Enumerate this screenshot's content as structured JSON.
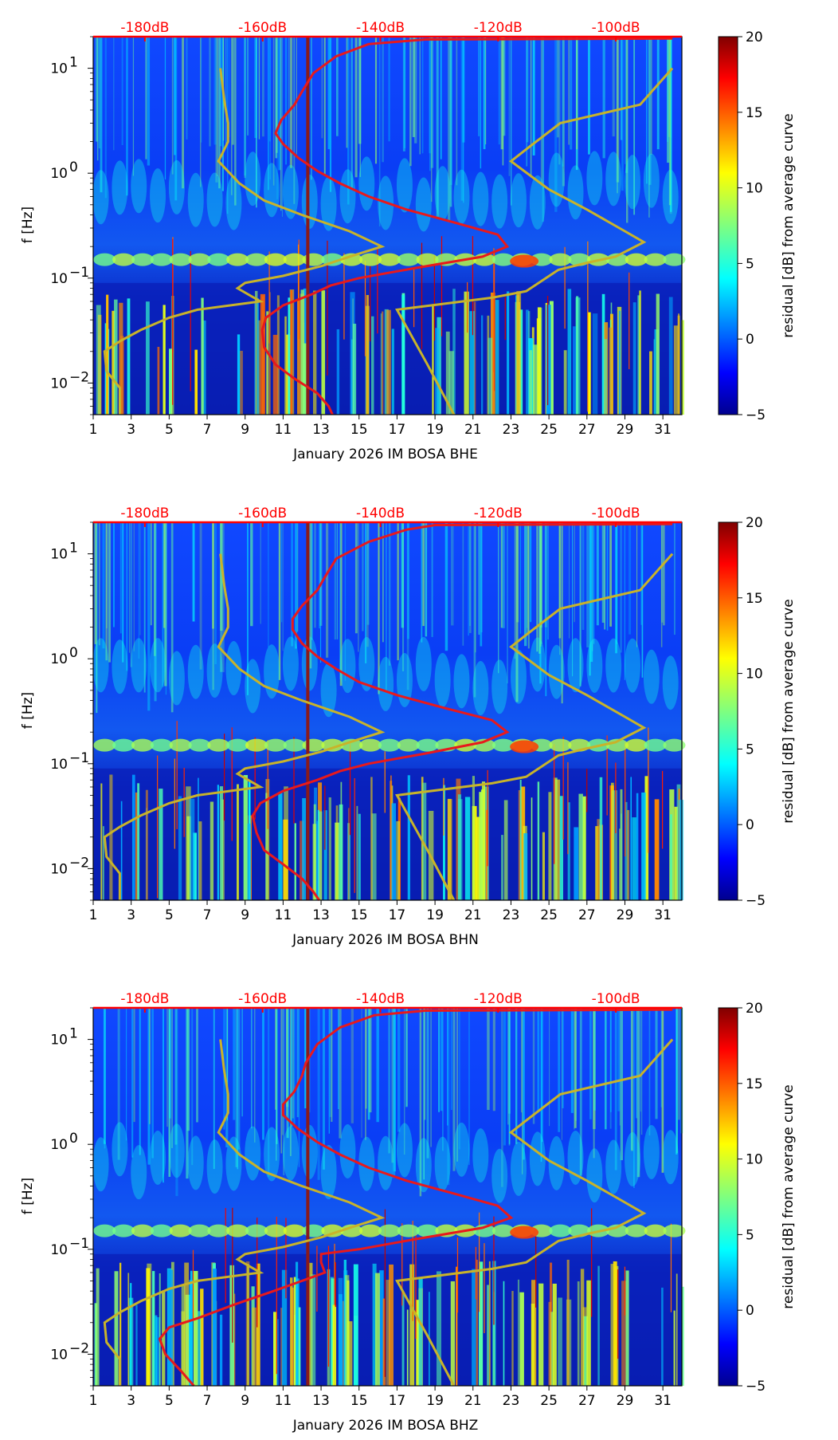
{
  "chart_data": [
    {
      "type": "heatmap",
      "xlabel": "January 2026 IM BOSA  BHE",
      "ylabel": "f [Hz]",
      "x_ticks": [
        "1",
        "3",
        "5",
        "7",
        "9",
        "11",
        "13",
        "15",
        "17",
        "19",
        "21",
        "23",
        "25",
        "27",
        "29",
        "31"
      ],
      "xlim": [
        1,
        32
      ],
      "ylim": [
        0.005,
        20
      ],
      "y_scale": "log",
      "y_ticks": [
        {
          "value": 10,
          "base": "10",
          "exp": "1"
        },
        {
          "value": 1,
          "base": "10",
          "exp": "0"
        },
        {
          "value": 0.1,
          "base": "10",
          "exp": "−1"
        },
        {
          "value": 0.01,
          "base": "10",
          "exp": "−2"
        }
      ],
      "top_axis_labels": [
        "-180dB",
        "-160dB",
        "-140dB",
        "-120dB",
        "-100dB"
      ],
      "top_axis_color": "#ff0000",
      "colorbar": {
        "label": "residual [dB] from average curve",
        "ticks": [
          "20",
          "15",
          "10",
          "5",
          "0",
          "−5"
        ],
        "range": [
          -5,
          20
        ],
        "colormap": "jet"
      },
      "marker_day": 12.3,
      "red_curve": {
        "color": "#e8191c",
        "points": [
          [
            13.6,
            0.005
          ],
          [
            13.4,
            0.006
          ],
          [
            12.8,
            0.008
          ],
          [
            11.6,
            0.011
          ],
          [
            10.6,
            0.015
          ],
          [
            10.0,
            0.022
          ],
          [
            9.9,
            0.032
          ],
          [
            10.1,
            0.042
          ],
          [
            11.0,
            0.055
          ],
          [
            12.5,
            0.07
          ],
          [
            13.5,
            0.085
          ],
          [
            15.0,
            0.1
          ],
          [
            18.0,
            0.125
          ],
          [
            21.5,
            0.16
          ],
          [
            22.8,
            0.2
          ],
          [
            22.3,
            0.26
          ],
          [
            20.0,
            0.34
          ],
          [
            17.5,
            0.45
          ],
          [
            15.5,
            0.6
          ],
          [
            14.0,
            0.8
          ],
          [
            12.8,
            1.05
          ],
          [
            11.8,
            1.4
          ],
          [
            11.0,
            1.9
          ],
          [
            10.6,
            2.4
          ],
          [
            10.9,
            3.2
          ],
          [
            11.6,
            4.5
          ],
          [
            12.0,
            6
          ],
          [
            12.6,
            9
          ],
          [
            13.8,
            13
          ],
          [
            15.5,
            17
          ],
          [
            18.5,
            18.8
          ],
          [
            31.5,
            19.2
          ]
        ]
      },
      "yellow_curves": [
        {
          "color": "#c8b32a",
          "points": [
            [
              2.4,
              0.005
            ],
            [
              2.4,
              0.009
            ],
            [
              1.7,
              0.013
            ],
            [
              1.6,
              0.02
            ],
            [
              2.4,
              0.025
            ],
            [
              3.5,
              0.032
            ],
            [
              5.0,
              0.042
            ],
            [
              6.5,
              0.05
            ],
            [
              9.8,
              0.06
            ],
            [
              8.6,
              0.08
            ],
            [
              9.0,
              0.09
            ],
            [
              11.0,
              0.105
            ],
            [
              13.0,
              0.13
            ],
            [
              14.5,
              0.16
            ],
            [
              16.2,
              0.2
            ],
            [
              14.5,
              0.28
            ],
            [
              12.0,
              0.4
            ],
            [
              10.0,
              0.55
            ],
            [
              8.7,
              0.8
            ],
            [
              7.6,
              1.3
            ],
            [
              8.1,
              2.0
            ],
            [
              8.1,
              3.0
            ],
            [
              7.9,
              5.0
            ],
            [
              7.7,
              10
            ]
          ]
        },
        {
          "color": "#c8b32a",
          "points": [
            [
              20.0,
              0.005
            ],
            [
              18.6,
              0.015
            ],
            [
              17.0,
              0.05
            ],
            [
              22.0,
              0.065
            ],
            [
              23.8,
              0.075
            ],
            [
              25.5,
              0.12
            ],
            [
              27.0,
              0.14
            ],
            [
              28.5,
              0.16
            ],
            [
              30.0,
              0.22
            ],
            [
              29.0,
              0.28
            ],
            [
              27.0,
              0.45
            ],
            [
              25.0,
              0.7
            ],
            [
              23.0,
              1.3
            ],
            [
              24.0,
              1.8
            ],
            [
              25.6,
              3.0
            ],
            [
              29.8,
              4.5
            ],
            [
              31.5,
              10
            ]
          ]
        }
      ]
    },
    {
      "type": "heatmap",
      "xlabel": "January 2026 IM BOSA  BHN",
      "ylabel": "f [Hz]",
      "x_ticks": [
        "1",
        "3",
        "5",
        "7",
        "9",
        "11",
        "13",
        "15",
        "17",
        "19",
        "21",
        "23",
        "25",
        "27",
        "29",
        "31"
      ],
      "xlim": [
        1,
        32
      ],
      "ylim": [
        0.005,
        20
      ],
      "y_scale": "log",
      "y_ticks": [
        {
          "value": 10,
          "base": "10",
          "exp": "1"
        },
        {
          "value": 1,
          "base": "10",
          "exp": "0"
        },
        {
          "value": 0.1,
          "base": "10",
          "exp": "−1"
        },
        {
          "value": 0.01,
          "base": "10",
          "exp": "−2"
        }
      ],
      "top_axis_labels": [
        "-180dB",
        "-160dB",
        "-140dB",
        "-120dB",
        "-100dB"
      ],
      "top_axis_color": "#ff0000",
      "colorbar": {
        "label": "residual [dB] from average curve",
        "ticks": [
          "20",
          "15",
          "10",
          "5",
          "0",
          "−5"
        ],
        "range": [
          -5,
          20
        ],
        "colormap": "jet"
      },
      "marker_day": 12.3,
      "red_curve": {
        "color": "#e8191c",
        "points": [
          [
            12.9,
            0.005
          ],
          [
            12.6,
            0.006
          ],
          [
            12.0,
            0.008
          ],
          [
            11.0,
            0.011
          ],
          [
            10.0,
            0.015
          ],
          [
            9.6,
            0.022
          ],
          [
            9.4,
            0.032
          ],
          [
            9.8,
            0.042
          ],
          [
            11.0,
            0.055
          ],
          [
            12.8,
            0.07
          ],
          [
            14.0,
            0.085
          ],
          [
            15.5,
            0.1
          ],
          [
            18.5,
            0.125
          ],
          [
            21.5,
            0.16
          ],
          [
            22.8,
            0.2
          ],
          [
            22.0,
            0.26
          ],
          [
            19.5,
            0.34
          ],
          [
            17.0,
            0.45
          ],
          [
            15.0,
            0.6
          ],
          [
            13.8,
            0.8
          ],
          [
            12.8,
            1.05
          ],
          [
            12.0,
            1.4
          ],
          [
            11.5,
            1.9
          ],
          [
            11.5,
            2.4
          ],
          [
            12.0,
            3.2
          ],
          [
            12.8,
            4.5
          ],
          [
            13.2,
            6
          ],
          [
            13.8,
            9
          ],
          [
            15.5,
            13
          ],
          [
            17.5,
            17
          ],
          [
            19.0,
            18.8
          ],
          [
            31.5,
            19.2
          ]
        ]
      },
      "yellow_curves": [
        {
          "color": "#c8b32a",
          "points": [
            [
              2.4,
              0.005
            ],
            [
              2.4,
              0.009
            ],
            [
              1.7,
              0.013
            ],
            [
              1.6,
              0.02
            ],
            [
              2.4,
              0.025
            ],
            [
              3.5,
              0.032
            ],
            [
              5.0,
              0.042
            ],
            [
              6.5,
              0.05
            ],
            [
              9.8,
              0.06
            ],
            [
              8.6,
              0.08
            ],
            [
              9.0,
              0.09
            ],
            [
              11.0,
              0.105
            ],
            [
              13.0,
              0.13
            ],
            [
              14.5,
              0.16
            ],
            [
              16.2,
              0.2
            ],
            [
              14.5,
              0.28
            ],
            [
              12.0,
              0.4
            ],
            [
              10.0,
              0.55
            ],
            [
              8.7,
              0.8
            ],
            [
              7.6,
              1.3
            ],
            [
              8.1,
              2.0
            ],
            [
              8.1,
              3.0
            ],
            [
              7.9,
              5.0
            ],
            [
              7.7,
              10
            ]
          ]
        },
        {
          "color": "#c8b32a",
          "points": [
            [
              20.0,
              0.005
            ],
            [
              18.6,
              0.015
            ],
            [
              17.0,
              0.05
            ],
            [
              22.0,
              0.065
            ],
            [
              23.8,
              0.075
            ],
            [
              25.5,
              0.12
            ],
            [
              27.0,
              0.14
            ],
            [
              28.5,
              0.16
            ],
            [
              30.0,
              0.22
            ],
            [
              29.0,
              0.28
            ],
            [
              27.0,
              0.45
            ],
            [
              25.0,
              0.7
            ],
            [
              23.0,
              1.3
            ],
            [
              24.0,
              1.8
            ],
            [
              25.6,
              3.0
            ],
            [
              29.8,
              4.5
            ],
            [
              31.5,
              10
            ]
          ]
        }
      ]
    },
    {
      "type": "heatmap",
      "xlabel": "January 2026 IM BOSA  BHZ",
      "ylabel": "f [Hz]",
      "x_ticks": [
        "1",
        "3",
        "5",
        "7",
        "9",
        "11",
        "13",
        "15",
        "17",
        "19",
        "21",
        "23",
        "25",
        "27",
        "29",
        "31"
      ],
      "xlim": [
        1,
        32
      ],
      "ylim": [
        0.005,
        20
      ],
      "y_scale": "log",
      "y_ticks": [
        {
          "value": 10,
          "base": "10",
          "exp": "1"
        },
        {
          "value": 1,
          "base": "10",
          "exp": "0"
        },
        {
          "value": 0.1,
          "base": "10",
          "exp": "−1"
        },
        {
          "value": 0.01,
          "base": "10",
          "exp": "−2"
        }
      ],
      "top_axis_labels": [
        "-180dB",
        "-160dB",
        "-140dB",
        "-120dB",
        "-100dB"
      ],
      "top_axis_color": "#ff0000",
      "colorbar": {
        "label": "residual [dB] from average curve",
        "ticks": [
          "20",
          "15",
          "10",
          "5",
          "0",
          "−5"
        ],
        "range": [
          -5,
          20
        ],
        "colormap": "jet"
      },
      "marker_day": 12.3,
      "red_curve": {
        "color": "#e8191c",
        "points": [
          [
            6.3,
            0.005
          ],
          [
            5.6,
            0.007
          ],
          [
            4.8,
            0.01
          ],
          [
            4.5,
            0.014
          ],
          [
            5.0,
            0.018
          ],
          [
            6.5,
            0.022
          ],
          [
            8.5,
            0.03
          ],
          [
            10.5,
            0.04
          ],
          [
            12.0,
            0.05
          ],
          [
            13.2,
            0.06
          ],
          [
            13.0,
            0.075
          ],
          [
            13.0,
            0.09
          ],
          [
            15.0,
            0.1
          ],
          [
            18.0,
            0.125
          ],
          [
            21.5,
            0.16
          ],
          [
            23.0,
            0.2
          ],
          [
            22.3,
            0.26
          ],
          [
            20.0,
            0.34
          ],
          [
            17.5,
            0.45
          ],
          [
            15.5,
            0.6
          ],
          [
            14.0,
            0.8
          ],
          [
            12.8,
            1.05
          ],
          [
            11.8,
            1.4
          ],
          [
            11.0,
            1.9
          ],
          [
            11.0,
            2.4
          ],
          [
            11.6,
            3.2
          ],
          [
            12.0,
            4.5
          ],
          [
            12.2,
            6
          ],
          [
            12.8,
            9
          ],
          [
            14.0,
            13
          ],
          [
            15.8,
            17
          ],
          [
            18.5,
            18.8
          ],
          [
            31.5,
            19.2
          ]
        ]
      },
      "yellow_curves": [
        {
          "color": "#c8b32a",
          "points": [
            [
              2.4,
              0.005
            ],
            [
              2.4,
              0.009
            ],
            [
              1.7,
              0.013
            ],
            [
              1.6,
              0.02
            ],
            [
              2.4,
              0.025
            ],
            [
              3.5,
              0.032
            ],
            [
              5.0,
              0.042
            ],
            [
              6.5,
              0.05
            ],
            [
              9.8,
              0.06
            ],
            [
              8.6,
              0.08
            ],
            [
              9.0,
              0.09
            ],
            [
              11.0,
              0.105
            ],
            [
              13.0,
              0.13
            ],
            [
              14.5,
              0.16
            ],
            [
              16.2,
              0.2
            ],
            [
              14.5,
              0.28
            ],
            [
              12.0,
              0.4
            ],
            [
              10.0,
              0.55
            ],
            [
              8.7,
              0.8
            ],
            [
              7.6,
              1.3
            ],
            [
              8.1,
              2.0
            ],
            [
              8.1,
              3.0
            ],
            [
              7.9,
              5.0
            ],
            [
              7.7,
              10
            ]
          ]
        },
        {
          "color": "#c8b32a",
          "points": [
            [
              20.0,
              0.005
            ],
            [
              18.6,
              0.015
            ],
            [
              17.0,
              0.05
            ],
            [
              22.0,
              0.065
            ],
            [
              23.8,
              0.075
            ],
            [
              25.5,
              0.12
            ],
            [
              27.0,
              0.14
            ],
            [
              28.5,
              0.16
            ],
            [
              30.0,
              0.22
            ],
            [
              29.0,
              0.28
            ],
            [
              27.0,
              0.45
            ],
            [
              25.0,
              0.7
            ],
            [
              23.0,
              1.3
            ],
            [
              24.0,
              1.8
            ],
            [
              25.6,
              3.0
            ],
            [
              29.8,
              4.5
            ],
            [
              31.5,
              10
            ]
          ]
        }
      ]
    }
  ]
}
